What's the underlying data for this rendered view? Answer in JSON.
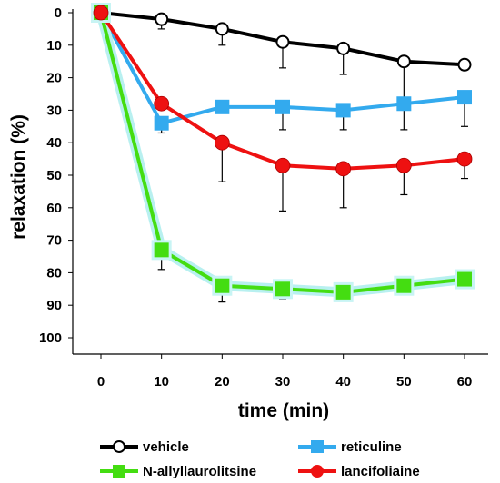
{
  "chart_data": {
    "type": "line",
    "title": "",
    "xlabel": "time (min)",
    "ylabel": "relaxation (%)",
    "xlim": [
      0,
      60
    ],
    "ylim": [
      0,
      100
    ],
    "y_inverted": true,
    "grid": false,
    "legend_placement": "bottom",
    "x_ticks": [
      0,
      10,
      20,
      30,
      40,
      50,
      60
    ],
    "y_ticks": [
      0,
      10,
      20,
      30,
      40,
      50,
      60,
      70,
      80,
      90,
      100
    ],
    "x": [
      0,
      10,
      20,
      30,
      40,
      50,
      60
    ],
    "series": [
      {
        "name": "vehicle",
        "color": "#000000",
        "marker": "open-circle",
        "values": [
          0,
          2,
          5,
          9,
          11,
          15,
          16
        ],
        "error": [
          0,
          3,
          5,
          8,
          8,
          12,
          0
        ]
      },
      {
        "name": "reticuline",
        "color": "#33aaee",
        "marker": "square",
        "values": [
          0,
          34,
          29,
          29,
          30,
          28,
          26
        ],
        "error": [
          0,
          3,
          0,
          7,
          6,
          8,
          9
        ]
      },
      {
        "name": "N-allyllaurolitsine",
        "color": "#44dd11",
        "marker": "square",
        "values": [
          0,
          73,
          84,
          85,
          86,
          84,
          82
        ],
        "error": [
          0,
          6,
          5,
          3,
          0,
          0,
          0
        ]
      },
      {
        "name": "lancifoliaine",
        "color": "#ee1111",
        "marker": "filled-circle",
        "values": [
          0,
          28,
          40,
          47,
          48,
          47,
          45
        ],
        "error": [
          0,
          0,
          12,
          14,
          12,
          9,
          6
        ]
      }
    ]
  }
}
